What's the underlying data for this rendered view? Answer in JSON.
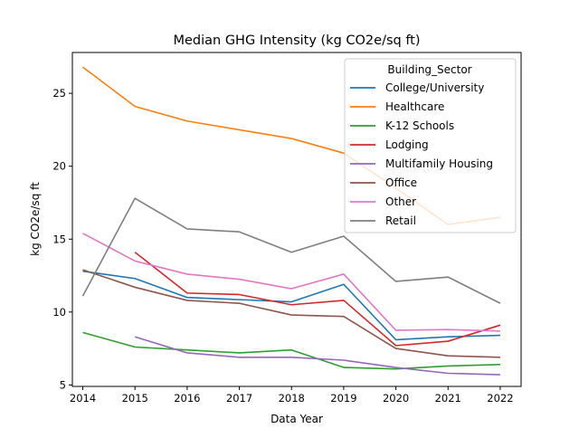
{
  "chart_data": {
    "type": "line",
    "title": "Median GHG Intensity (kg CO2e/sq ft)",
    "xlabel": "Data Year",
    "ylabel": "kg CO2e/sq ft",
    "x": [
      2014,
      2015,
      2016,
      2017,
      2018,
      2019,
      2020,
      2021,
      2022
    ],
    "x_ticks": [
      "2014",
      "2015",
      "2016",
      "2017",
      "2018",
      "2019",
      "2020",
      "2021",
      "2022"
    ],
    "y_ticks": [
      "5",
      "10",
      "15",
      "20",
      "25"
    ],
    "xlim": [
      2013.8,
      2022.4
    ],
    "ylim": [
      4.9,
      27.8
    ],
    "grid": false,
    "legend": {
      "title": "Building_Sector",
      "placement": "top-right"
    },
    "series": [
      {
        "name": "College/University",
        "color": "#1f77b4",
        "values": [
          12.8,
          12.3,
          11.0,
          10.85,
          10.7,
          11.9,
          8.1,
          8.3,
          8.4
        ]
      },
      {
        "name": "Healthcare",
        "color": "#ff7f0e",
        "values": [
          26.8,
          24.1,
          23.1,
          22.5,
          21.9,
          20.9,
          18.5,
          16.0,
          16.5
        ]
      },
      {
        "name": "K-12 Schools",
        "color": "#2ca02c",
        "values": [
          8.6,
          7.6,
          7.4,
          7.2,
          7.4,
          6.2,
          6.1,
          6.3,
          6.4
        ]
      },
      {
        "name": "Lodging",
        "color": "#d62728",
        "values": [
          null,
          14.1,
          11.3,
          11.2,
          10.5,
          10.8,
          7.7,
          8.0,
          9.1
        ]
      },
      {
        "name": "Multifamily Housing",
        "color": "#9467bd",
        "values": [
          null,
          8.3,
          7.2,
          6.9,
          6.9,
          6.7,
          6.2,
          5.8,
          5.7
        ]
      },
      {
        "name": "Office",
        "color": "#8c564b",
        "values": [
          12.9,
          11.7,
          10.8,
          10.6,
          9.8,
          9.7,
          7.5,
          7.0,
          6.9
        ]
      },
      {
        "name": "Other",
        "color": "#e377c2",
        "values": [
          15.4,
          13.5,
          12.6,
          12.25,
          11.6,
          12.6,
          8.75,
          8.8,
          8.7
        ]
      },
      {
        "name": "Retail",
        "color": "#7f7f7f",
        "values": [
          11.1,
          17.8,
          15.7,
          15.5,
          14.1,
          15.2,
          12.1,
          12.4,
          10.6
        ]
      }
    ]
  }
}
